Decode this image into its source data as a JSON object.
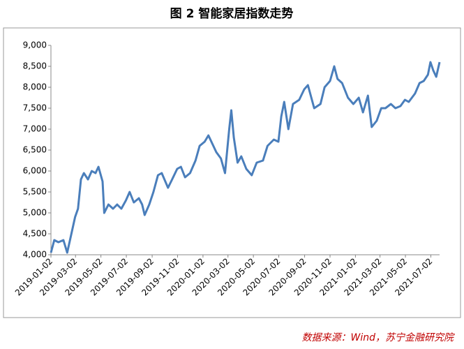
{
  "chart_data": {
    "type": "line",
    "title": "图 2  智能家居指数走势",
    "source": "数据来源：Wind，苏宁金融研究院",
    "series": [
      {
        "name": "智能家居指数",
        "color": "#4a7ebb",
        "x": [
          "2019-01-02",
          "2019-01-10",
          "2019-01-20",
          "2019-02-01",
          "2019-02-10",
          "2019-02-20",
          "2019-03-01",
          "2019-03-08",
          "2019-03-15",
          "2019-03-22",
          "2019-04-01",
          "2019-04-10",
          "2019-04-19",
          "2019-04-26",
          "2019-05-06",
          "2019-05-10",
          "2019-05-20",
          "2019-05-31",
          "2019-06-10",
          "2019-06-20",
          "2019-07-01",
          "2019-07-10",
          "2019-07-20",
          "2019-08-01",
          "2019-08-09",
          "2019-08-15",
          "2019-08-26",
          "2019-09-05",
          "2019-09-16",
          "2019-09-25",
          "2019-10-10",
          "2019-10-20",
          "2019-11-01",
          "2019-11-10",
          "2019-11-20",
          "2019-12-02",
          "2019-12-15",
          "2019-12-25",
          "2020-01-06",
          "2020-01-15",
          "2020-02-03",
          "2020-02-14",
          "2020-02-24",
          "2020-03-05",
          "2020-03-10",
          "2020-03-16",
          "2020-03-25",
          "2020-04-03",
          "2020-04-15",
          "2020-04-28",
          "2020-05-10",
          "2020-05-25",
          "2020-06-05",
          "2020-06-20",
          "2020-07-01",
          "2020-07-08",
          "2020-07-15",
          "2020-07-25",
          "2020-08-05",
          "2020-08-20",
          "2020-09-01",
          "2020-09-10",
          "2020-09-25",
          "2020-10-10",
          "2020-10-20",
          "2020-11-02",
          "2020-11-12",
          "2020-11-20",
          "2020-12-01",
          "2020-12-15",
          "2020-12-28",
          "2021-01-10",
          "2021-01-20",
          "2021-02-01",
          "2021-02-10",
          "2021-02-22",
          "2021-03-05",
          "2021-03-15",
          "2021-03-28",
          "2021-04-08",
          "2021-04-20",
          "2021-05-01",
          "2021-05-10",
          "2021-05-25",
          "2021-06-05",
          "2021-06-15",
          "2021-06-25",
          "2021-07-01",
          "2021-07-08",
          "2021-07-15",
          "2021-07-23"
        ],
        "values": [
          4050,
          4350,
          4300,
          4350,
          4050,
          4500,
          4900,
          5100,
          5800,
          5950,
          5800,
          6000,
          5950,
          6100,
          5750,
          5000,
          5200,
          5100,
          5200,
          5100,
          5300,
          5500,
          5250,
          5350,
          5200,
          4950,
          5200,
          5500,
          5900,
          5950,
          5600,
          5800,
          6050,
          6100,
          5850,
          5950,
          6250,
          6600,
          6700,
          6850,
          6450,
          6300,
          5950,
          7000,
          7450,
          6800,
          6200,
          6350,
          6050,
          5900,
          6200,
          6250,
          6600,
          6750,
          6700,
          7300,
          7650,
          7000,
          7600,
          7700,
          7950,
          8050,
          7500,
          7600,
          8000,
          8150,
          8500,
          8200,
          8100,
          7750,
          7600,
          7750,
          7400,
          7800,
          7050,
          7200,
          7500,
          7500,
          7600,
          7500,
          7550,
          7700,
          7650,
          7850,
          8100,
          8150,
          8300,
          8600,
          8400,
          8250,
          8600
        ]
      }
    ],
    "xlim": [
      "2019-01-02",
      "2021-07-23"
    ],
    "xticks": [
      "2019-01-02",
      "2019-03-02",
      "2019-05-02",
      "2019-07-02",
      "2019-09-02",
      "2019-11-02",
      "2020-01-02",
      "2020-03-02",
      "2020-05-02",
      "2020-07-02",
      "2020-09-02",
      "2020-11-02",
      "2021-01-02",
      "2021-03-02",
      "2021-05-02",
      "2021-07-02"
    ],
    "ylim": [
      4000,
      9000
    ],
    "yticks": [
      {
        "value": 4000,
        "label": "4,000"
      },
      {
        "value": 4500,
        "label": "4,500"
      },
      {
        "value": 5000,
        "label": "5,000"
      },
      {
        "value": 5500,
        "label": "5,500"
      },
      {
        "value": 6000,
        "label": "6,000"
      },
      {
        "value": 6500,
        "label": "6,500"
      },
      {
        "value": 7000,
        "label": "7,000"
      },
      {
        "value": 7500,
        "label": "7,500"
      },
      {
        "value": 8000,
        "label": "8,000"
      },
      {
        "value": 8500,
        "label": "8,500"
      },
      {
        "value": 9000,
        "label": "9,000"
      }
    ],
    "grid": false
  }
}
